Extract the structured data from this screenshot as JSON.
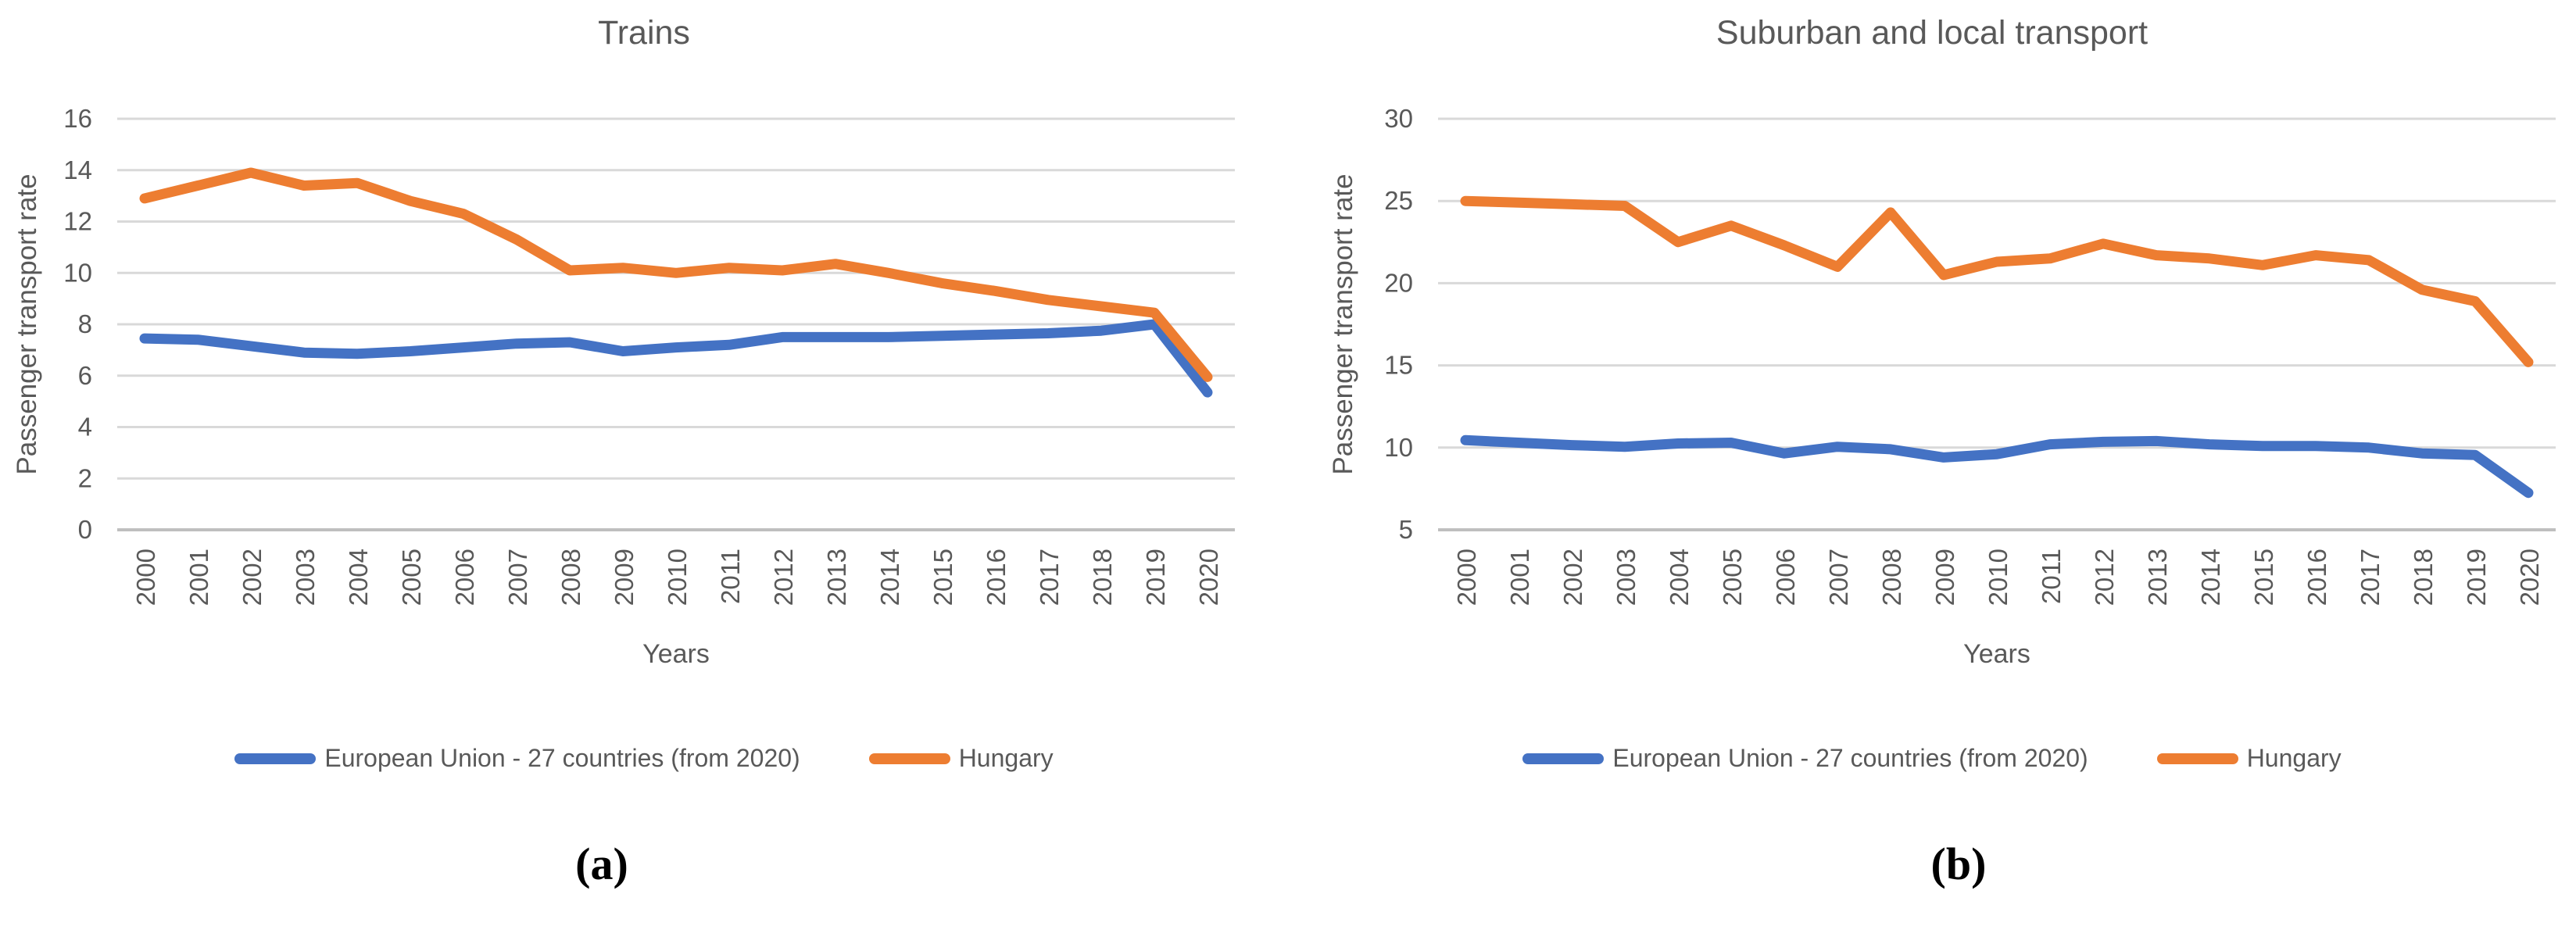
{
  "figure": {
    "style": {
      "background": "#ffffff",
      "gridline_color": "#d9d9d9",
      "axis_line_color": "#bfbfbf",
      "text_color": "#595959",
      "eu_color": "#4472c4",
      "hungary_color": "#ed7d31"
    }
  },
  "chart_data": [
    {
      "type": "line",
      "title": "Trains",
      "xlabel": "Years",
      "ylabel": "Passenger transport rate",
      "caption": "(a)",
      "grid": true,
      "legend_position": "bottom",
      "ylim": [
        0,
        16
      ],
      "yticks": [
        0,
        2,
        4,
        6,
        8,
        10,
        12,
        14,
        16
      ],
      "x": [
        2000,
        2001,
        2002,
        2003,
        2004,
        2005,
        2006,
        2007,
        2008,
        2009,
        2010,
        2011,
        2012,
        2013,
        2014,
        2015,
        2016,
        2017,
        2018,
        2019,
        2020
      ],
      "series": [
        {
          "name": "European Union - 27 countries (from 2020)",
          "color": "#4472c4",
          "values": [
            7.45,
            7.4,
            7.15,
            6.9,
            6.85,
            6.95,
            7.1,
            7.25,
            7.3,
            6.95,
            7.1,
            7.2,
            7.5,
            7.5,
            7.5,
            7.55,
            7.6,
            7.65,
            7.75,
            8.0,
            5.35
          ]
        },
        {
          "name": "Hungary",
          "color": "#ed7d31",
          "values": [
            12.9,
            13.4,
            13.9,
            13.4,
            13.5,
            12.8,
            12.3,
            11.3,
            10.1,
            10.2,
            10.0,
            10.2,
            10.1,
            10.35,
            10.0,
            9.6,
            9.3,
            8.95,
            8.7,
            8.45,
            5.95
          ]
        }
      ]
    },
    {
      "type": "line",
      "title": "Suburban and local transport",
      "xlabel": "Years",
      "ylabel": "Passenger transport rate",
      "caption": "(b)",
      "grid": true,
      "legend_position": "bottom",
      "ylim": [
        5,
        30
      ],
      "yticks": [
        5,
        10,
        15,
        20,
        25,
        30
      ],
      "x": [
        2000,
        2001,
        2002,
        2003,
        2004,
        2005,
        2006,
        2007,
        2008,
        2009,
        2010,
        2011,
        2012,
        2013,
        2014,
        2015,
        2016,
        2017,
        2018,
        2019,
        2020
      ],
      "series": [
        {
          "name": "European Union - 27 countries (from 2020)",
          "color": "#4472c4",
          "values": [
            10.45,
            10.3,
            10.15,
            10.05,
            10.25,
            10.3,
            9.65,
            10.05,
            9.9,
            9.4,
            9.6,
            10.2,
            10.35,
            10.4,
            10.2,
            10.1,
            10.1,
            10.0,
            9.65,
            9.55,
            7.25
          ]
        },
        {
          "name": "Hungary",
          "color": "#ed7d31",
          "values": [
            25.0,
            24.9,
            24.8,
            24.7,
            22.5,
            23.5,
            22.3,
            21.0,
            24.3,
            20.5,
            21.3,
            21.5,
            22.4,
            21.7,
            21.5,
            21.1,
            21.7,
            21.4,
            19.6,
            18.9,
            15.2
          ]
        }
      ]
    }
  ]
}
